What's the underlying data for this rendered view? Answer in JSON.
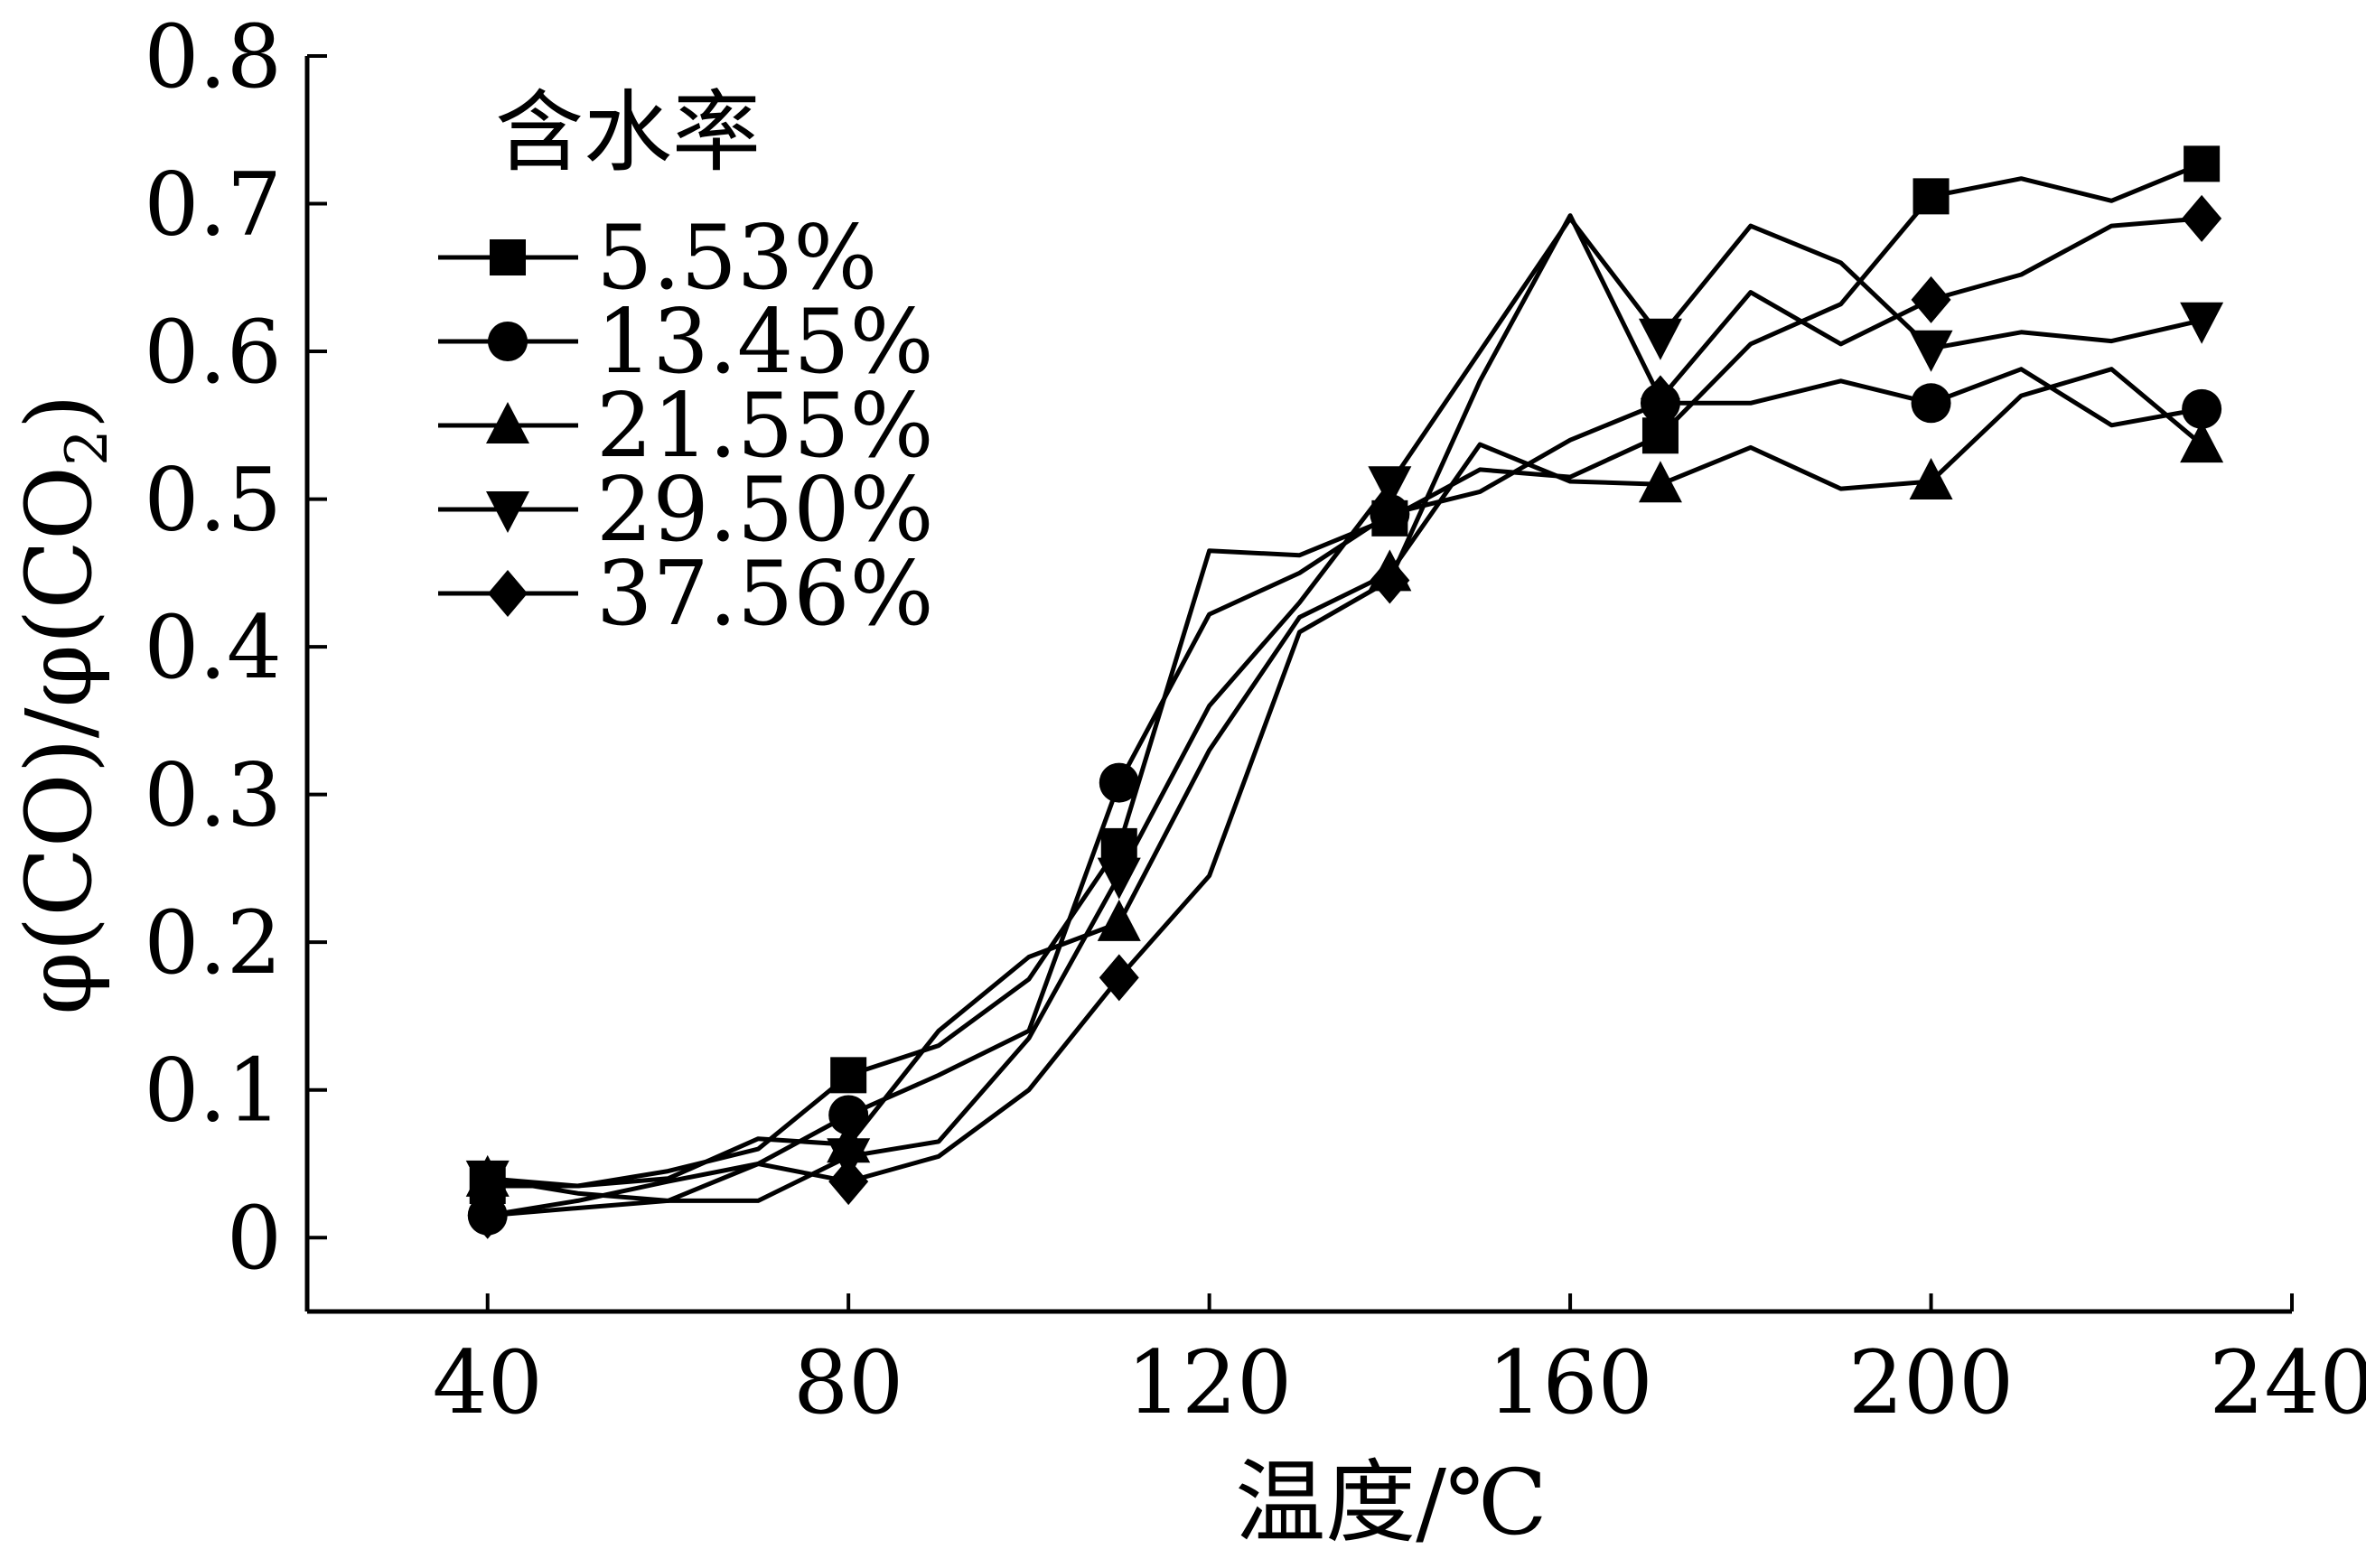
{
  "chart_data": {
    "type": "line",
    "xlabel": "温度/℃",
    "ylabel": "φ(CO)/φ(CO₂)",
    "ylabel_parts": {
      "main": "φ(CO)/φ(CO",
      "sub": "2",
      "end": ")"
    },
    "xlim": [
      20,
      240
    ],
    "ylim": [
      -0.05,
      0.8
    ],
    "xticks": [
      40,
      80,
      120,
      160,
      200,
      240
    ],
    "yticks": [
      0,
      0.1,
      0.2,
      0.3,
      0.4,
      0.5,
      0.6,
      0.7,
      0.8
    ],
    "xtick_labels": [
      "40",
      "80",
      "120",
      "160",
      "200",
      "240"
    ],
    "ytick_labels": [
      "0",
      "0.1",
      "0.2",
      "0.3",
      "0.4",
      "0.5",
      "0.6",
      "0.7",
      "0.8"
    ],
    "grid": false,
    "legend": {
      "title": "含水率",
      "placement": "top-left"
    },
    "series": [
      {
        "name": "5.53%",
        "marker": "square",
        "x": [
          40,
          50,
          60,
          70,
          80,
          90,
          100,
          110,
          120,
          130,
          140,
          150,
          160,
          170,
          180,
          190,
          200,
          210,
          220,
          230
        ],
        "y": [
          0.035,
          0.035,
          0.045,
          0.06,
          0.11,
          0.13,
          0.175,
          0.265,
          0.465,
          0.462,
          0.487,
          0.52,
          0.515,
          0.543,
          0.605,
          0.632,
          0.705,
          0.717,
          0.702,
          0.727
        ],
        "markers_at": [
          40,
          80,
          110,
          140,
          170,
          200,
          230
        ]
      },
      {
        "name": "13.45%",
        "marker": "circle",
        "x": [
          40,
          50,
          60,
          70,
          80,
          90,
          100,
          110,
          120,
          130,
          140,
          150,
          160,
          170,
          180,
          190,
          200,
          210,
          220,
          230
        ],
        "y": [
          0.015,
          0.025,
          0.038,
          0.05,
          0.083,
          0.11,
          0.14,
          0.308,
          0.422,
          0.45,
          0.49,
          0.505,
          0.54,
          0.565,
          0.565,
          0.58,
          0.565,
          0.588,
          0.55,
          0.561
        ],
        "markers_at": [
          40,
          80,
          110,
          140,
          170,
          200,
          230
        ]
      },
      {
        "name": "21.55%",
        "marker": "triangle-up",
        "x": [
          40,
          50,
          60,
          70,
          80,
          90,
          100,
          110,
          120,
          130,
          140,
          150,
          160,
          170,
          180,
          190,
          200,
          210,
          220,
          230
        ],
        "y": [
          0.04,
          0.035,
          0.04,
          0.067,
          0.063,
          0.14,
          0.19,
          0.213,
          0.33,
          0.42,
          0.45,
          0.537,
          0.512,
          0.51,
          0.535,
          0.507,
          0.512,
          0.57,
          0.588,
          0.537
        ],
        "markers_at": [
          40,
          80,
          110,
          140,
          170,
          200,
          230
        ]
      },
      {
        "name": "29.50%",
        "marker": "triangle-down",
        "x": [
          40,
          50,
          60,
          70,
          80,
          90,
          100,
          110,
          120,
          130,
          140,
          150,
          160,
          170,
          180,
          190,
          200,
          210,
          220,
          230
        ],
        "y": [
          0.04,
          0.03,
          0.025,
          0.025,
          0.055,
          0.065,
          0.135,
          0.245,
          0.36,
          0.43,
          0.51,
          0.6,
          0.69,
          0.61,
          0.685,
          0.66,
          0.602,
          0.613,
          0.607,
          0.621
        ],
        "markers_at": [
          40,
          80,
          110,
          140,
          170,
          200,
          230
        ]
      },
      {
        "name": "37.56%",
        "marker": "diamond",
        "x": [
          40,
          50,
          60,
          70,
          80,
          90,
          100,
          110,
          120,
          130,
          140,
          150,
          160,
          170,
          180,
          190,
          200,
          210,
          220,
          230
        ],
        "y": [
          0.015,
          0.02,
          0.025,
          0.05,
          0.038,
          0.055,
          0.1,
          0.176,
          0.245,
          0.41,
          0.445,
          0.58,
          0.692,
          0.568,
          0.64,
          0.605,
          0.635,
          0.652,
          0.685,
          0.69
        ],
        "markers_at": [
          40,
          80,
          110,
          140,
          170,
          200,
          230
        ]
      }
    ]
  }
}
